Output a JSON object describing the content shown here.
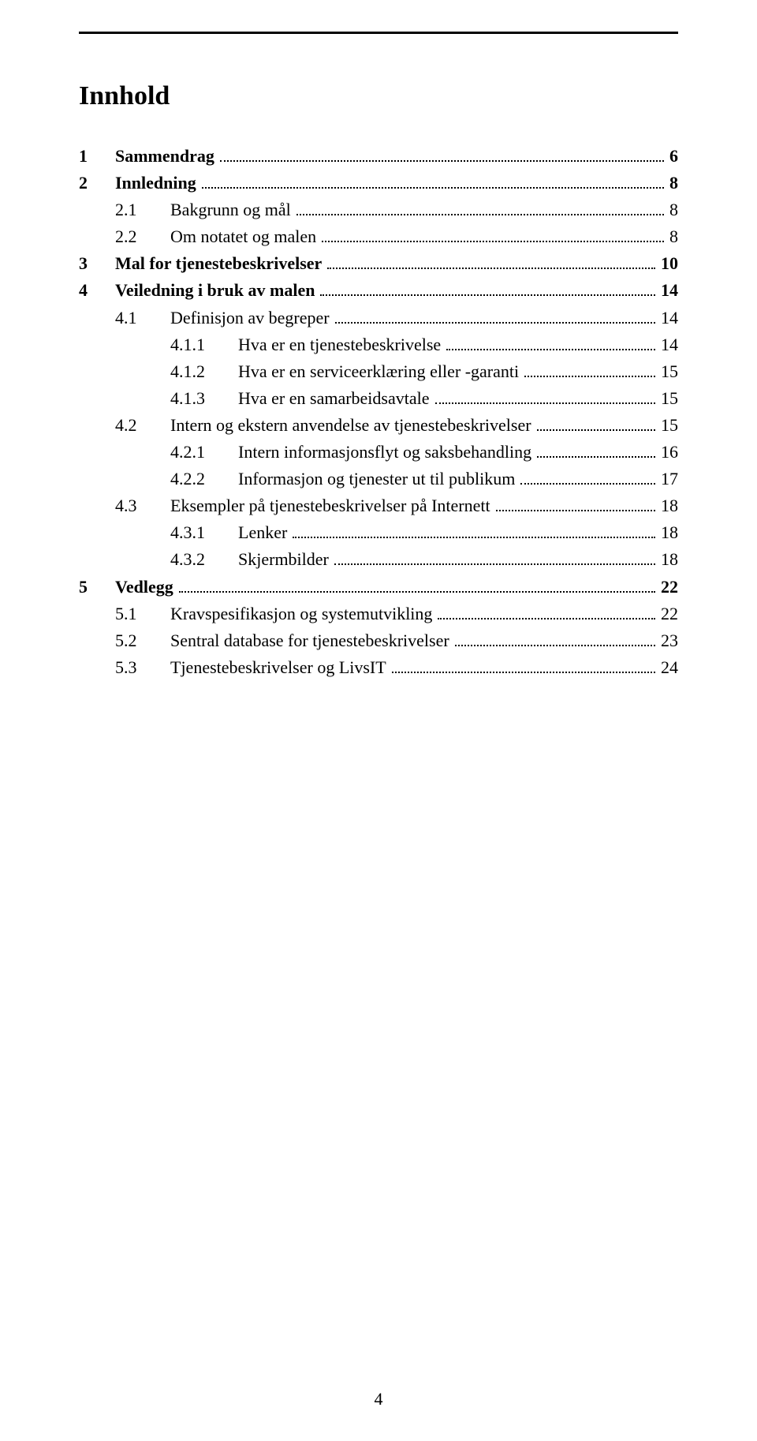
{
  "title": "Innhold",
  "page_number": "4",
  "toc": [
    {
      "level": 1,
      "num": "1",
      "label": "Sammendrag",
      "page": "6"
    },
    {
      "level": 1,
      "num": "2",
      "label": "Innledning",
      "page": "8"
    },
    {
      "level": 2,
      "num": "2.1",
      "label": "Bakgrunn og mål",
      "page": "8"
    },
    {
      "level": 2,
      "num": "2.2",
      "label": "Om notatet og malen",
      "page": "8"
    },
    {
      "level": 1,
      "num": "3",
      "label": "Mal for tjenestebeskrivelser",
      "page": "10"
    },
    {
      "level": 1,
      "num": "4",
      "label": "Veiledning i bruk av malen",
      "page": "14"
    },
    {
      "level": 2,
      "num": "4.1",
      "label": "Definisjon av begreper",
      "page": "14"
    },
    {
      "level": 3,
      "num": "4.1.1",
      "label": "Hva er en tjenestebeskrivelse",
      "page": "14"
    },
    {
      "level": 3,
      "num": "4.1.2",
      "label": "Hva er en serviceerklæring eller -garanti",
      "page": "15"
    },
    {
      "level": 3,
      "num": "4.1.3",
      "label": "Hva er en samarbeidsavtale",
      "page": "15"
    },
    {
      "level": 2,
      "num": "4.2",
      "label": "Intern og ekstern anvendelse av tjenestebeskrivelser",
      "page": "15"
    },
    {
      "level": 3,
      "num": "4.2.1",
      "label": "Intern informasjonsflyt og saksbehandling",
      "page": "16"
    },
    {
      "level": 3,
      "num": "4.2.2",
      "label": "Informasjon og tjenester ut til publikum",
      "page": "17"
    },
    {
      "level": 2,
      "num": "4.3",
      "label": "Eksempler på tjenestebeskrivelser på Internett",
      "page": "18"
    },
    {
      "level": 3,
      "num": "4.3.1",
      "label": "Lenker",
      "page": "18"
    },
    {
      "level": 3,
      "num": "4.3.2",
      "label": "Skjermbilder",
      "page": "18"
    },
    {
      "level": 1,
      "num": "5",
      "label": "Vedlegg",
      "page": "22"
    },
    {
      "level": 2,
      "num": "5.1",
      "label": "Kravspesifikasjon og systemutvikling",
      "page": "22"
    },
    {
      "level": 2,
      "num": "5.2",
      "label": "Sentral database for tjenestebeskrivelser",
      "page": "23"
    },
    {
      "level": 2,
      "num": "5.3",
      "label": "Tjenestebeskrivelser og LivsIT",
      "page": "24"
    }
  ]
}
